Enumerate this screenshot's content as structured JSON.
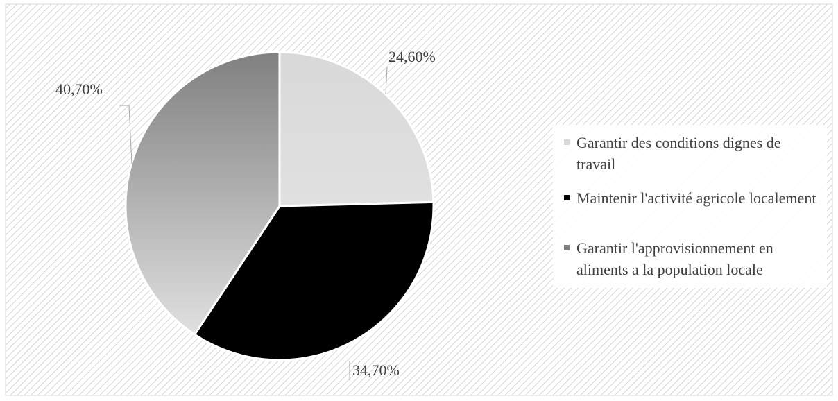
{
  "chart_data": {
    "type": "pie",
    "categories": [
      "Garantir des conditions dignes de travail",
      "Maintenir l'activité agricole localement",
      "Garantir l'approvisionnement en aliments a la population locale"
    ],
    "values": [
      24.6,
      34.7,
      40.7
    ],
    "value_labels": [
      "24,60%",
      "34,70%",
      "40,70%"
    ],
    "colors": [
      "#d9d9d9",
      "#000000",
      "#808080"
    ],
    "legend": "right"
  }
}
